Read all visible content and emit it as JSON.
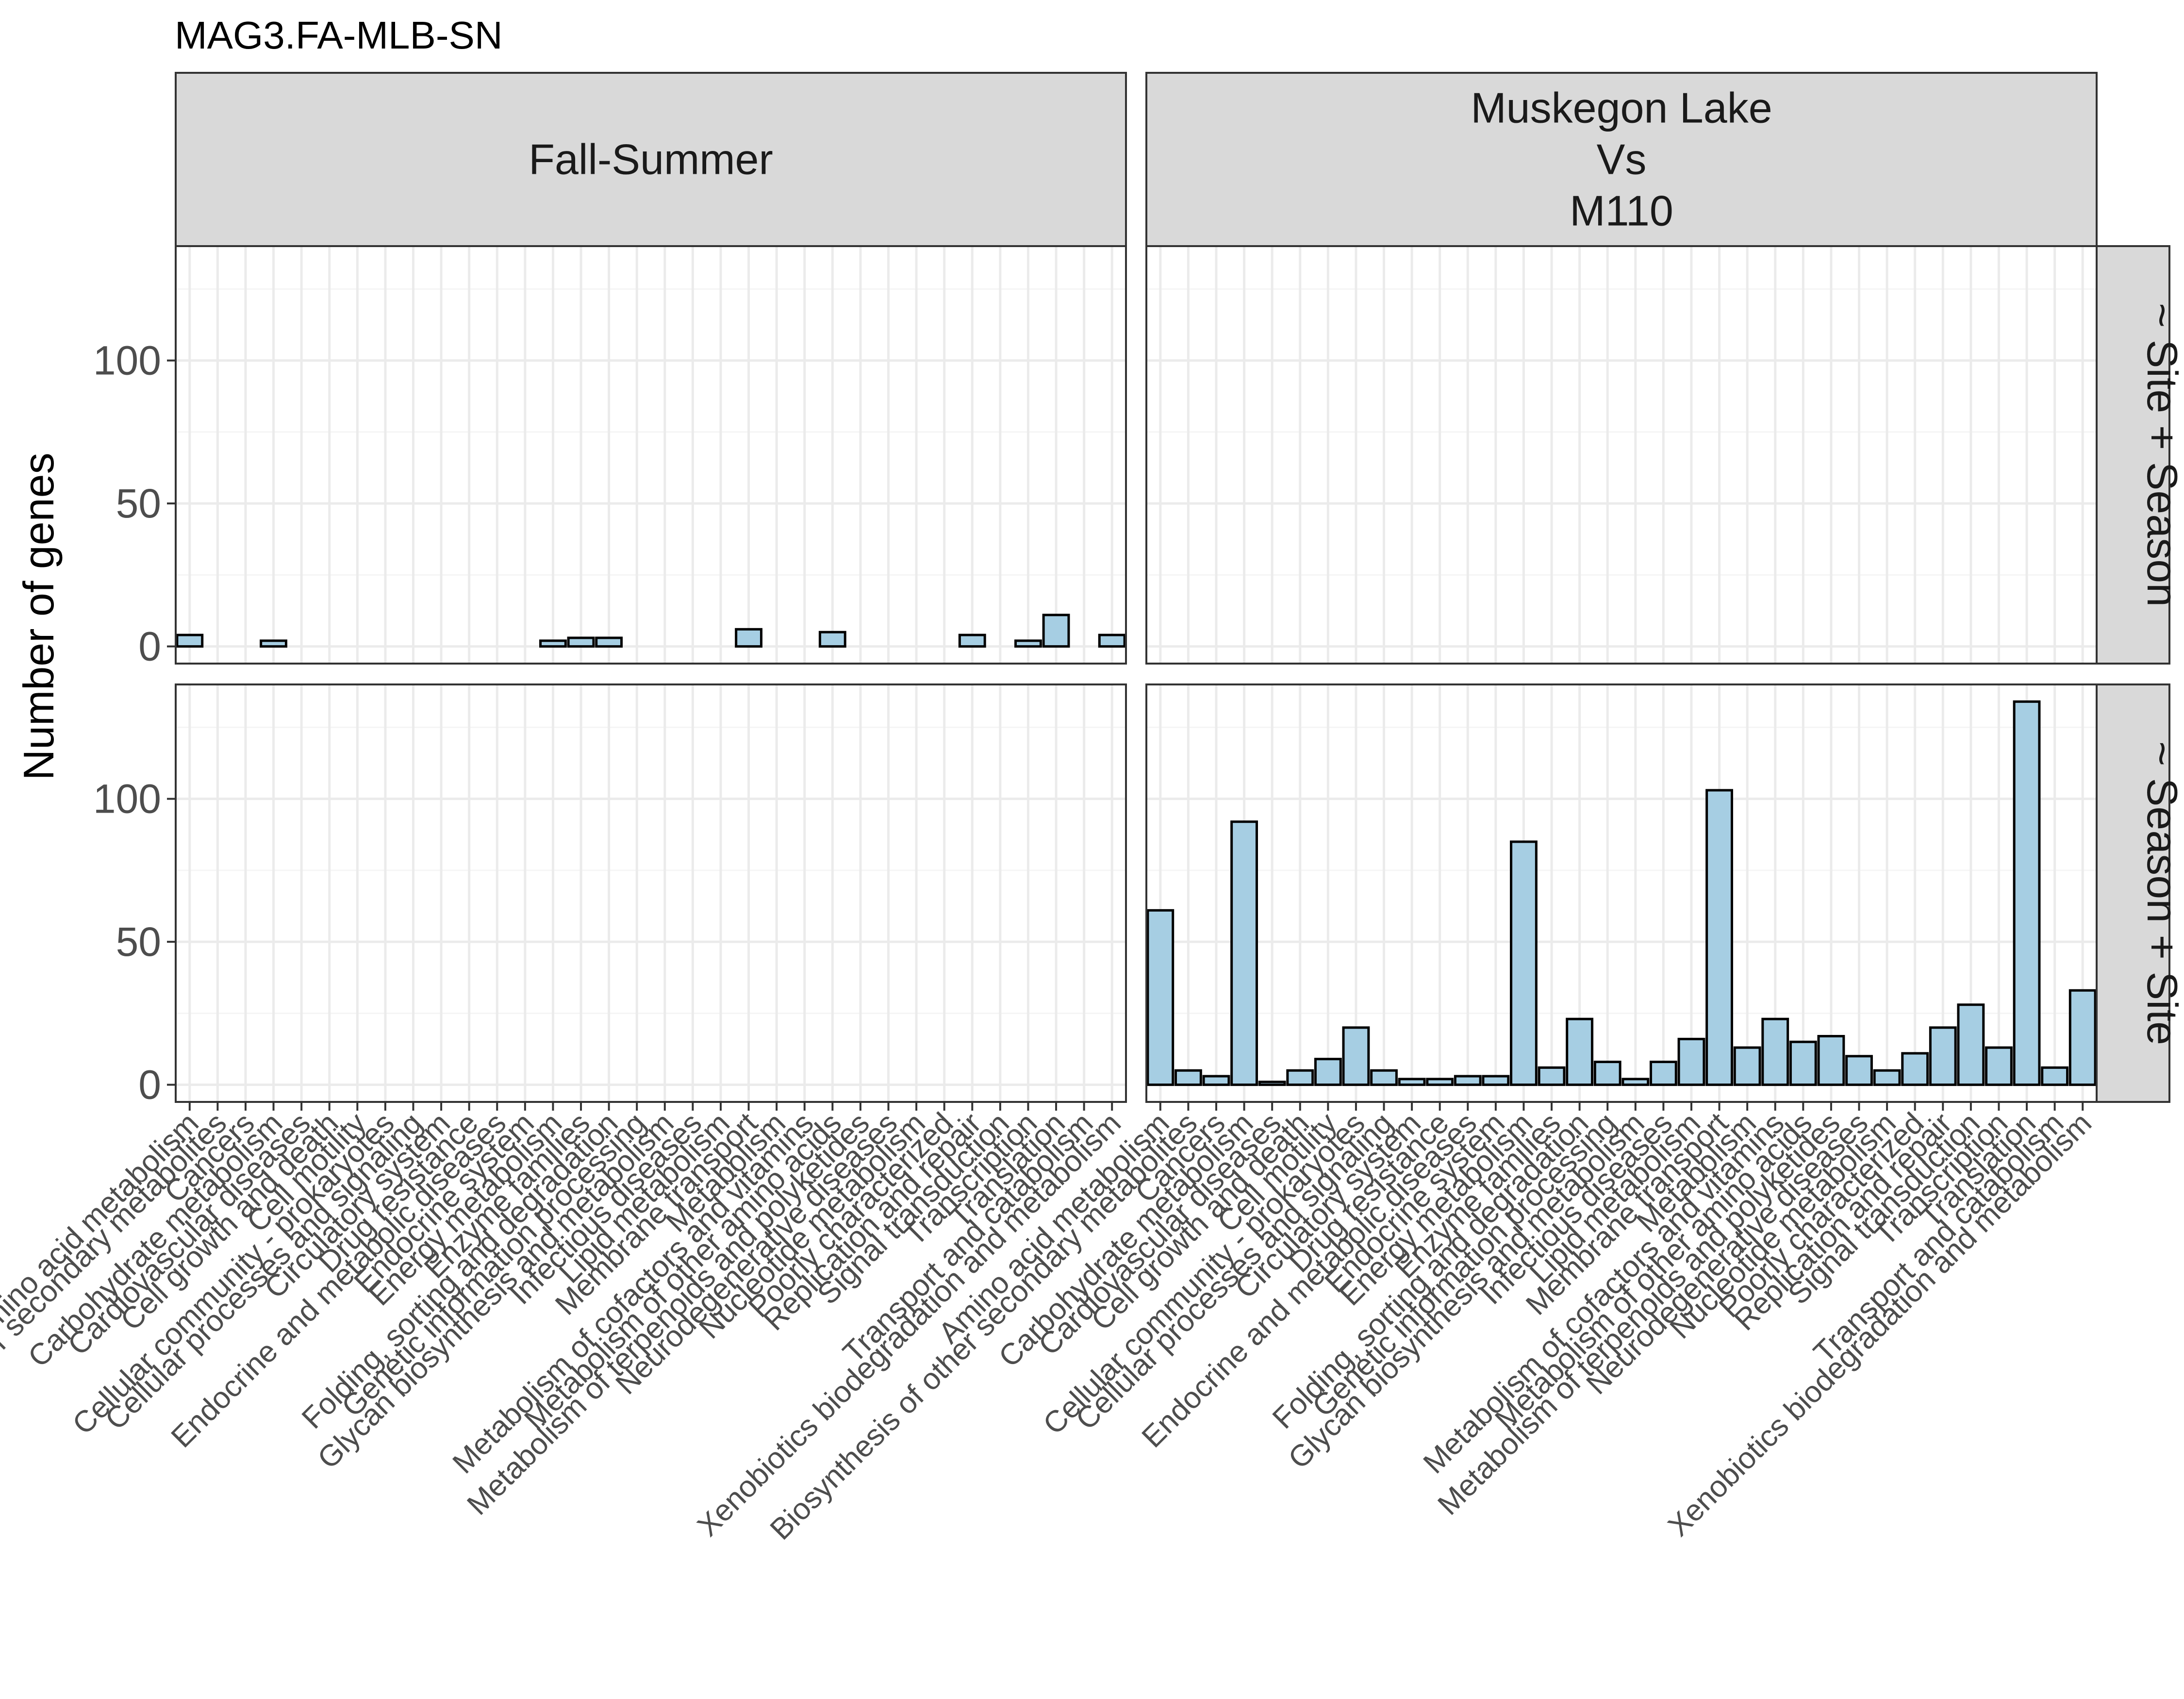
{
  "colors": {
    "bar_fill": "#a6cee3",
    "bar_stroke": "#000000",
    "strip_fill": "#d9d9d9",
    "grid_major": "#ebebeb",
    "grid_minor": "#f5f5f5",
    "panel_border": "#333333"
  },
  "chart_data": {
    "type": "bar",
    "title": "MAG3.FA-MLB-SN",
    "ylabel": "Number of genes",
    "xlabel": "",
    "ylim": [
      -6,
      140
    ],
    "yticks": [
      0,
      50,
      100
    ],
    "grid": true,
    "col_facets": [
      {
        "label": "Fall-Summer"
      },
      {
        "label_lines": [
          "Muskegon Lake",
          "Vs",
          "M110"
        ]
      }
    ],
    "row_facets": [
      "~ Site + Season",
      "~ Season + Site"
    ],
    "categories": [
      "Amino acid metabolism",
      "Biosynthesis of other secondary metabolites",
      "Cancers",
      "Carbohydrate metabolism",
      "Cardiovascular diseases",
      "Cell growth and death",
      "Cell motility",
      "Cellular community - prokaryotes",
      "Cellular processes and signaling",
      "Circulatory system",
      "Drug resistance",
      "Endocrine and metabolic diseases",
      "Endocrine system",
      "Energy metabolism",
      "Enzyme families",
      "Folding, sorting and degradation",
      "Genetic information processing",
      "Glycan biosynthesis and metabolism",
      "Infectious diseases",
      "Lipid metabolism",
      "Membrane transport",
      "Metabolism",
      "Metabolism of cofactors and vitamins",
      "Metabolism of other amino acids",
      "Metabolism of terpenoids and polyketides",
      "Neurodegenerative diseases",
      "Nucleotide metabolism",
      "Poorly characterized",
      "Replication and repair",
      "Signal transduction",
      "Transcription",
      "Translation",
      "Transport and catabolism",
      "Xenobiotics biodegradation and metabolism"
    ],
    "series": [
      {
        "row": "~ Site + Season",
        "col": "Fall-Summer",
        "values": [
          4,
          0,
          0,
          2,
          0,
          0,
          0,
          0,
          0,
          0,
          0,
          0,
          0,
          2,
          3,
          3,
          0,
          0,
          0,
          0,
          6,
          0,
          0,
          5,
          0,
          0,
          0,
          0,
          4,
          0,
          2,
          11,
          0,
          4
        ]
      },
      {
        "row": "~ Site + Season",
        "col": "Muskegon Lake Vs M110",
        "values": [
          0,
          0,
          0,
          0,
          0,
          0,
          0,
          0,
          0,
          0,
          0,
          0,
          0,
          0,
          0,
          0,
          0,
          0,
          0,
          0,
          0,
          0,
          0,
          0,
          0,
          0,
          0,
          0,
          0,
          0,
          0,
          0,
          0,
          0
        ]
      },
      {
        "row": "~ Season + Site",
        "col": "Fall-Summer",
        "values": [
          0,
          0,
          0,
          0,
          0,
          0,
          0,
          0,
          0,
          0,
          0,
          0,
          0,
          0,
          0,
          0,
          0,
          0,
          0,
          0,
          0,
          0,
          0,
          0,
          0,
          0,
          0,
          0,
          0,
          0,
          0,
          0,
          0,
          0
        ]
      },
      {
        "row": "~ Season + Site",
        "col": "Muskegon Lake Vs M110",
        "values": [
          61,
          5,
          3,
          92,
          1,
          5,
          9,
          20,
          5,
          2,
          2,
          3,
          3,
          85,
          6,
          23,
          8,
          2,
          8,
          16,
          103,
          13,
          23,
          15,
          17,
          10,
          5,
          11,
          20,
          28,
          13,
          134,
          6,
          33
        ]
      }
    ]
  }
}
